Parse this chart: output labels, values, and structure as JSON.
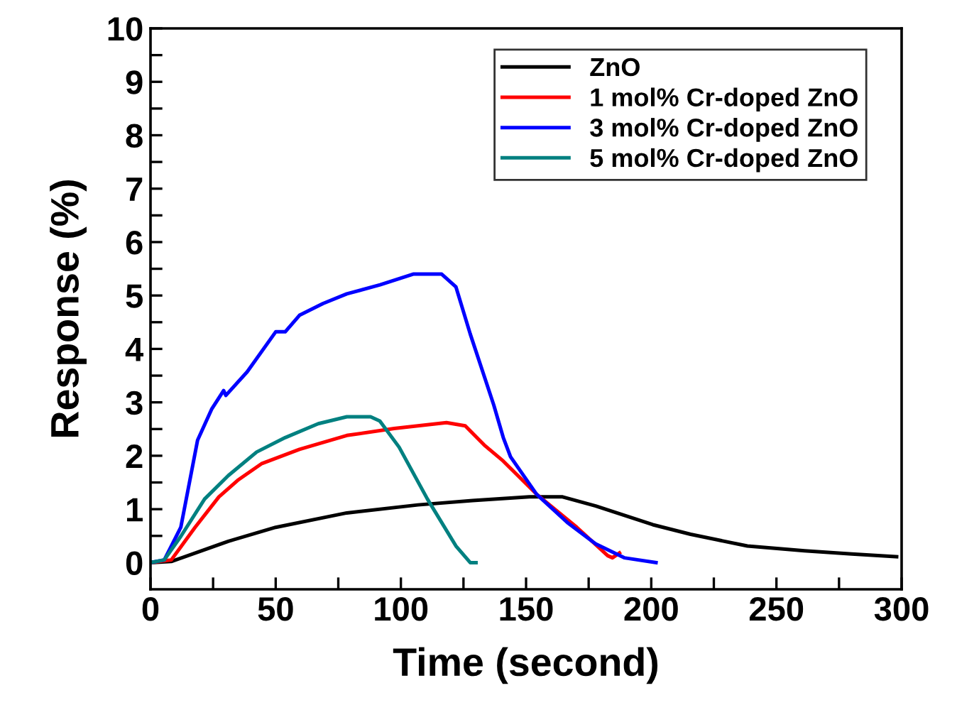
{
  "chart_data": {
    "type": "line",
    "xlabel": "Time (second)",
    "ylabel": "Response (%)",
    "xlim": [
      0,
      300
    ],
    "ylim": [
      -0.5,
      10
    ],
    "xticks": [
      0,
      {
        "value": 25,
        "label": null
      },
      50,
      {
        "value": 75,
        "label": null
      },
      100,
      {
        "value": 125,
        "label": null
      },
      150,
      {
        "value": 175,
        "label": null
      },
      200,
      {
        "value": 225,
        "label": null
      },
      250,
      {
        "value": 275,
        "label": null
      },
      300
    ],
    "yticks": [
      0,
      {
        "value": 0.5,
        "label": null
      },
      1,
      {
        "value": 1.5,
        "label": null
      },
      2,
      {
        "value": 2.5,
        "label": null
      },
      3,
      {
        "value": 3.5,
        "label": null
      },
      4,
      {
        "value": 4.5,
        "label": null
      },
      5,
      {
        "value": 5.5,
        "label": null
      },
      6,
      {
        "value": 6.5,
        "label": null
      },
      7,
      {
        "value": 7.5,
        "label": null
      },
      8,
      {
        "value": 8.5,
        "label": null
      },
      9,
      {
        "value": 9.5,
        "label": null
      },
      10
    ],
    "grid": false,
    "legend": "top right",
    "marker": "none",
    "line_style": "solid",
    "series": [
      {
        "name": "ZnO",
        "color": "#000000",
        "x": [
          0,
          8.3,
          31.1,
          50,
          78.4,
          106.8,
          128.6,
          151.3,
          164.6,
          177.8,
          200.6,
          215.7,
          238.4,
          261.2,
          280.1,
          298
        ],
        "values": [
          0,
          0.02,
          0.4,
          0.66,
          0.93,
          1.08,
          1.16,
          1.23,
          1.23,
          1.06,
          0.71,
          0.53,
          0.31,
          0.22,
          0.16,
          0.11
        ]
      },
      {
        "name": "1 mol% Cr-doped ZnO",
        "color": "#ff0000",
        "x": [
          0,
          8.3,
          17.8,
          27.3,
          34.8,
          44.3,
          59.5,
          78.4,
          97.3,
          118.2,
          125.7,
          133.3,
          140.9,
          154.2,
          170.3,
          182.6,
          184.5,
          187.3
        ],
        "values": [
          0,
          0.05,
          0.66,
          1.23,
          1.54,
          1.85,
          2.12,
          2.38,
          2.51,
          2.62,
          2.56,
          2.2,
          1.9,
          1.28,
          0.66,
          0.13,
          0.09,
          0.18
        ]
      },
      {
        "name": "3 mol% Cr-doped ZnO",
        "color": "#0000ff",
        "x": [
          0,
          5.5,
          12.1,
          18.8,
          24.4,
          29.2,
          30.1,
          38.6,
          50,
          53.8,
          59.5,
          68.9,
          78.4,
          91.7,
          104.9,
          116.3,
          122,
          127.7,
          137.1,
          140.9,
          143.8,
          154.2,
          166.5,
          177.8,
          189.2,
          201.9
        ],
        "values": [
          0,
          0.05,
          0.66,
          2.29,
          2.87,
          3.22,
          3.13,
          3.57,
          4.32,
          4.32,
          4.63,
          4.85,
          5.03,
          5.2,
          5.4,
          5.4,
          5.16,
          4.28,
          2.95,
          2.34,
          1.98,
          1.28,
          0.75,
          0.35,
          0.09,
          0
        ]
      },
      {
        "name": "5 mol% Cr-doped ZnO",
        "color": "#008080",
        "x": [
          0,
          5.5,
          12.1,
          21.6,
          31.1,
          42.4,
          53.8,
          67,
          78.4,
          87.9,
          91.6,
          99.3,
          110.6,
          122,
          127.7,
          130
        ],
        "values": [
          0,
          0.05,
          0.49,
          1.19,
          1.63,
          2.07,
          2.34,
          2.6,
          2.73,
          2.73,
          2.65,
          2.16,
          1.19,
          0.31,
          0,
          0
        ]
      }
    ]
  }
}
